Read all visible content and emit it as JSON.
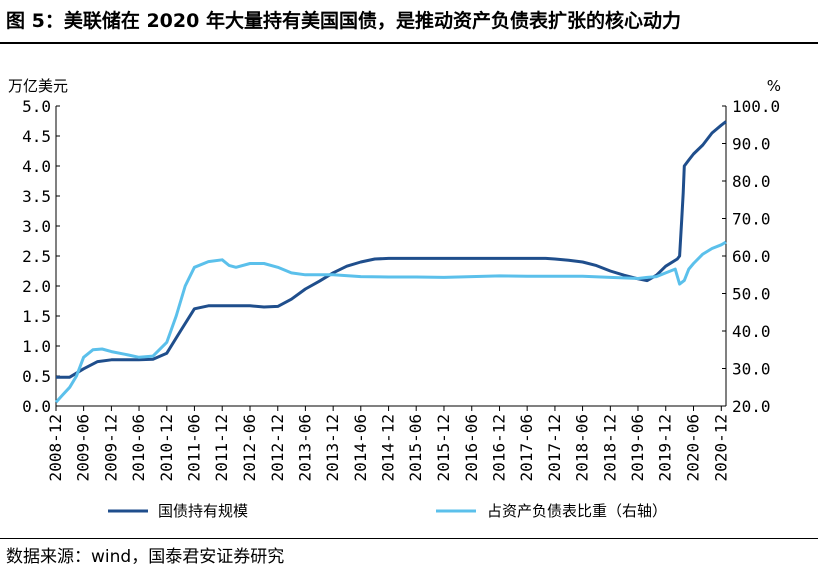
{
  "header": {
    "title": "图 5：美联储在 2020 年大量持有美国国债，是推动资产负债表扩张的核心动力"
  },
  "footer": {
    "source": "数据来源：wind，国泰君安证券研究"
  },
  "chart_data": {
    "type": "line",
    "title": "",
    "left_unit": "万亿美元",
    "right_unit": "%",
    "y_left": {
      "min": 0.0,
      "max": 5.0,
      "ticks": [
        "0.0",
        "0.5",
        "1.0",
        "1.5",
        "2.0",
        "2.5",
        "3.0",
        "3.5",
        "4.0",
        "4.5",
        "5.0"
      ]
    },
    "y_right": {
      "min": 20.0,
      "max": 100.0,
      "ticks": [
        "20.0",
        "30.0",
        "40.0",
        "50.0",
        "60.0",
        "70.0",
        "80.0",
        "90.0",
        "100.0"
      ]
    },
    "x_ticks": [
      "2008-12",
      "2009-06",
      "2009-12",
      "2010-06",
      "2010-12",
      "2011-06",
      "2011-12",
      "2012-06",
      "2012-12",
      "2013-06",
      "2013-12",
      "2014-06",
      "2014-12",
      "2015-06",
      "2015-12",
      "2016-06",
      "2016-12",
      "2017-06",
      "2017-12",
      "2018-06",
      "2018-12",
      "2019-06",
      "2019-12",
      "2020-06",
      "2020-12"
    ],
    "legend_position": "bottom",
    "grid": false,
    "colors": {
      "holdings": "#1f4e8c",
      "share": "#5bc0eb"
    },
    "series": [
      {
        "name": "国债持有规模",
        "axis": "left",
        "points": [
          [
            "2008-12-01",
            0.48
          ],
          [
            "2009-03-01",
            0.48
          ],
          [
            "2009-06-01",
            0.62
          ],
          [
            "2009-09-01",
            0.74
          ],
          [
            "2009-12-01",
            0.77
          ],
          [
            "2010-06-01",
            0.77
          ],
          [
            "2010-09-01",
            0.78
          ],
          [
            "2010-12-01",
            0.88
          ],
          [
            "2011-03-01",
            1.25
          ],
          [
            "2011-06-01",
            1.62
          ],
          [
            "2011-09-01",
            1.67
          ],
          [
            "2011-12-01",
            1.67
          ],
          [
            "2012-06-01",
            1.67
          ],
          [
            "2012-09-01",
            1.65
          ],
          [
            "2012-12-01",
            1.66
          ],
          [
            "2013-03-01",
            1.78
          ],
          [
            "2013-06-01",
            1.95
          ],
          [
            "2013-09-01",
            2.08
          ],
          [
            "2013-12-01",
            2.22
          ],
          [
            "2014-03-01",
            2.33
          ],
          [
            "2014-06-01",
            2.4
          ],
          [
            "2014-09-01",
            2.45
          ],
          [
            "2014-12-01",
            2.46
          ],
          [
            "2015-06-01",
            2.46
          ],
          [
            "2015-12-01",
            2.46
          ],
          [
            "2016-06-01",
            2.46
          ],
          [
            "2016-12-01",
            2.46
          ],
          [
            "2017-06-01",
            2.46
          ],
          [
            "2017-10-01",
            2.46
          ],
          [
            "2017-12-01",
            2.45
          ],
          [
            "2018-03-01",
            2.43
          ],
          [
            "2018-06-01",
            2.4
          ],
          [
            "2018-09-01",
            2.34
          ],
          [
            "2018-12-01",
            2.25
          ],
          [
            "2019-03-01",
            2.18
          ],
          [
            "2019-06-01",
            2.12
          ],
          [
            "2019-08-01",
            2.09
          ],
          [
            "2019-10-01",
            2.18
          ],
          [
            "2019-12-01",
            2.33
          ],
          [
            "2020-02-15",
            2.45
          ],
          [
            "2020-03-01",
            2.5
          ],
          [
            "2020-03-15",
            3.1
          ],
          [
            "2020-03-25",
            3.55
          ],
          [
            "2020-04-01",
            4.0
          ],
          [
            "2020-05-01",
            4.1
          ],
          [
            "2020-06-01",
            4.2
          ],
          [
            "2020-08-01",
            4.35
          ],
          [
            "2020-10-01",
            4.55
          ],
          [
            "2020-12-01",
            4.68
          ],
          [
            "2021-01-01",
            4.74
          ]
        ]
      },
      {
        "name": "占资产负债表比重（右轴）",
        "axis": "right",
        "points": [
          [
            "2008-12-01",
            21.0
          ],
          [
            "2009-01-15",
            23.0
          ],
          [
            "2009-03-01",
            25.0
          ],
          [
            "2009-04-15",
            28.0
          ],
          [
            "2009-06-01",
            33.0
          ],
          [
            "2009-08-01",
            35.0
          ],
          [
            "2009-10-01",
            35.2
          ],
          [
            "2009-12-01",
            34.5
          ],
          [
            "2010-03-01",
            33.8
          ],
          [
            "2010-06-01",
            33.0
          ],
          [
            "2010-09-01",
            33.3
          ],
          [
            "2010-12-01",
            37.0
          ],
          [
            "2011-02-01",
            44.0
          ],
          [
            "2011-04-01",
            52.0
          ],
          [
            "2011-06-01",
            57.0
          ],
          [
            "2011-09-01",
            58.5
          ],
          [
            "2011-12-01",
            59.0
          ],
          [
            "2012-01-15",
            57.5
          ],
          [
            "2012-03-01",
            57.0
          ],
          [
            "2012-06-01",
            58.0
          ],
          [
            "2012-09-01",
            58.0
          ],
          [
            "2012-12-01",
            57.0
          ],
          [
            "2013-03-01",
            55.5
          ],
          [
            "2013-06-01",
            55.0
          ],
          [
            "2013-12-01",
            55.0
          ],
          [
            "2014-06-01",
            54.5
          ],
          [
            "2014-12-01",
            54.4
          ],
          [
            "2015-06-01",
            54.4
          ],
          [
            "2015-12-01",
            54.3
          ],
          [
            "2016-06-01",
            54.5
          ],
          [
            "2016-12-01",
            54.7
          ],
          [
            "2017-06-01",
            54.6
          ],
          [
            "2017-12-01",
            54.6
          ],
          [
            "2018-06-01",
            54.6
          ],
          [
            "2018-12-01",
            54.3
          ],
          [
            "2019-06-01",
            54.0
          ],
          [
            "2019-08-01",
            54.3
          ],
          [
            "2019-10-01",
            54.5
          ],
          [
            "2019-12-01",
            55.5
          ],
          [
            "2020-02-01",
            56.5
          ],
          [
            "2020-03-01",
            52.5
          ],
          [
            "2020-04-01",
            53.5
          ],
          [
            "2020-05-01",
            56.5
          ],
          [
            "2020-06-01",
            58.0
          ],
          [
            "2020-08-01",
            60.5
          ],
          [
            "2020-10-01",
            62.0
          ],
          [
            "2020-12-01",
            63.0
          ],
          [
            "2021-01-01",
            63.7
          ]
        ]
      }
    ]
  }
}
